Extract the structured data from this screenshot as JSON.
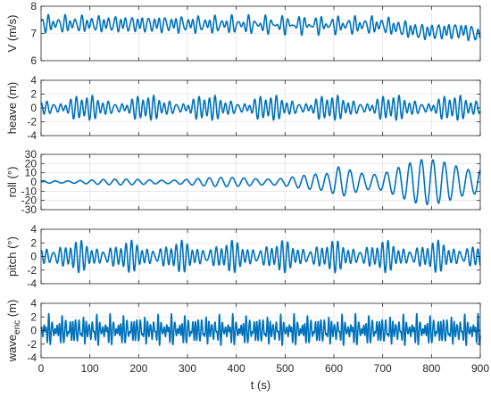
{
  "chart_data": {
    "type": "line",
    "x_axis": {
      "label": "t (s)",
      "range": [
        0,
        900
      ],
      "ticks": [
        0,
        100,
        200,
        300,
        400,
        500,
        600,
        700,
        800,
        900
      ]
    },
    "grid": true,
    "line_color": "#0072BD",
    "panels": [
      {
        "id": "velocity",
        "ylabel": "V (m/s)",
        "ylim": [
          6,
          8
        ],
        "yticks": [
          6,
          7,
          8
        ],
        "signal": {
          "mean": 7.35,
          "components": [
            [
              0.18,
              0.55
            ],
            [
              0.12,
              0.37
            ],
            [
              0.08,
              0.72
            ]
          ],
          "drift": [
            [
              0,
              7.35
            ],
            [
              700,
              7.3
            ],
            [
              780,
              7.05
            ],
            [
              860,
              7.1
            ],
            [
              900,
              6.95
            ]
          ]
        }
      },
      {
        "id": "heave",
        "ylabel": "heave (m)",
        "ylim": [
          -4,
          4
        ],
        "yticks": [
          -4,
          -2,
          0,
          2,
          4
        ],
        "signal": {
          "mean": 0,
          "components": [
            [
              0.8,
              0.55
            ],
            [
              0.7,
              0.6
            ],
            [
              0.4,
              0.4
            ]
          ]
        }
      },
      {
        "id": "roll",
        "ylabel": "roll (°)",
        "ylim": [
          -30,
          30
        ],
        "yticks": [
          -30,
          -20,
          -10,
          0,
          10,
          20,
          30
        ],
        "signal": {
          "mean": 0,
          "components": [
            [
              1.0,
              0.26
            ],
            [
              0.35,
              0.29
            ]
          ],
          "envelope": [
            [
              0,
              1.5
            ],
            [
              300,
              3
            ],
            [
              500,
              5
            ],
            [
              590,
              7
            ],
            [
              610,
              14
            ],
            [
              700,
              12
            ],
            [
              780,
              18
            ],
            [
              860,
              20
            ],
            [
              900,
              20
            ]
          ]
        }
      },
      {
        "id": "pitch",
        "ylabel": "pitch (°)",
        "ylim": [
          -4,
          4
        ],
        "yticks": [
          -4,
          -2,
          0,
          2,
          4
        ],
        "signal": {
          "mean": 0,
          "components": [
            [
              1.0,
              0.55
            ],
            [
              0.9,
              0.61
            ],
            [
              0.5,
              0.43
            ]
          ]
        }
      },
      {
        "id": "wave",
        "ylabel": "wave",
        "ylabel_sub": "enc",
        "ylabel_unit": " (m)",
        "ylim": [
          -4,
          4
        ],
        "yticks": [
          -4,
          -2,
          0,
          2,
          4
        ],
        "signal": {
          "mean": 0,
          "components": [
            [
              0.9,
              0.9
            ],
            [
              0.8,
              1.15
            ],
            [
              0.6,
              0.7
            ],
            [
              0.4,
              1.4
            ]
          ]
        }
      }
    ]
  }
}
